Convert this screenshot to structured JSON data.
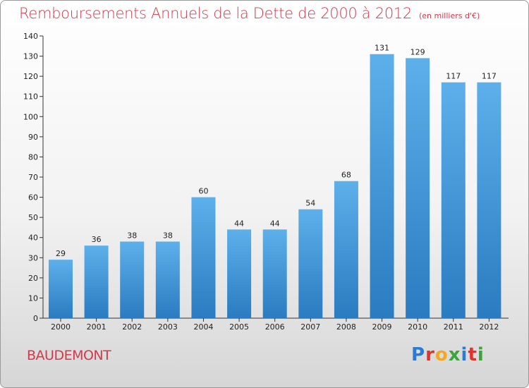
{
  "title": "Remboursements Annuels de la Dette de 2000 à 2012",
  "unit_note": "(en milliers d'€)",
  "place_name": "BAUDEMONT",
  "logo": {
    "text": "Proxiti",
    "letters": [
      "P",
      "r",
      "o",
      "x",
      "i",
      "t",
      "i"
    ],
    "colors": [
      "#2a7bd5",
      "#e0332c",
      "#f5a623",
      "#3aa63a",
      "#2a7bd5",
      "#e0332c",
      "#3aa63a"
    ]
  },
  "colors": {
    "bar_light": "#5db0ea",
    "bar_dark": "#2a7bc0",
    "title": "#d8374a"
  },
  "chart_data": {
    "type": "bar",
    "categories": [
      "2000",
      "2001",
      "2002",
      "2003",
      "2004",
      "2005",
      "2006",
      "2007",
      "2008",
      "2009",
      "2010",
      "2011",
      "2012"
    ],
    "values": [
      29,
      36,
      38,
      38,
      60,
      44,
      44,
      54,
      68,
      131,
      129,
      117,
      117
    ],
    "ylim": [
      0,
      140
    ],
    "yticks": [
      0,
      10,
      20,
      30,
      40,
      50,
      60,
      70,
      80,
      90,
      100,
      110,
      120,
      130,
      140
    ],
    "grid": false,
    "data_labels": true
  }
}
